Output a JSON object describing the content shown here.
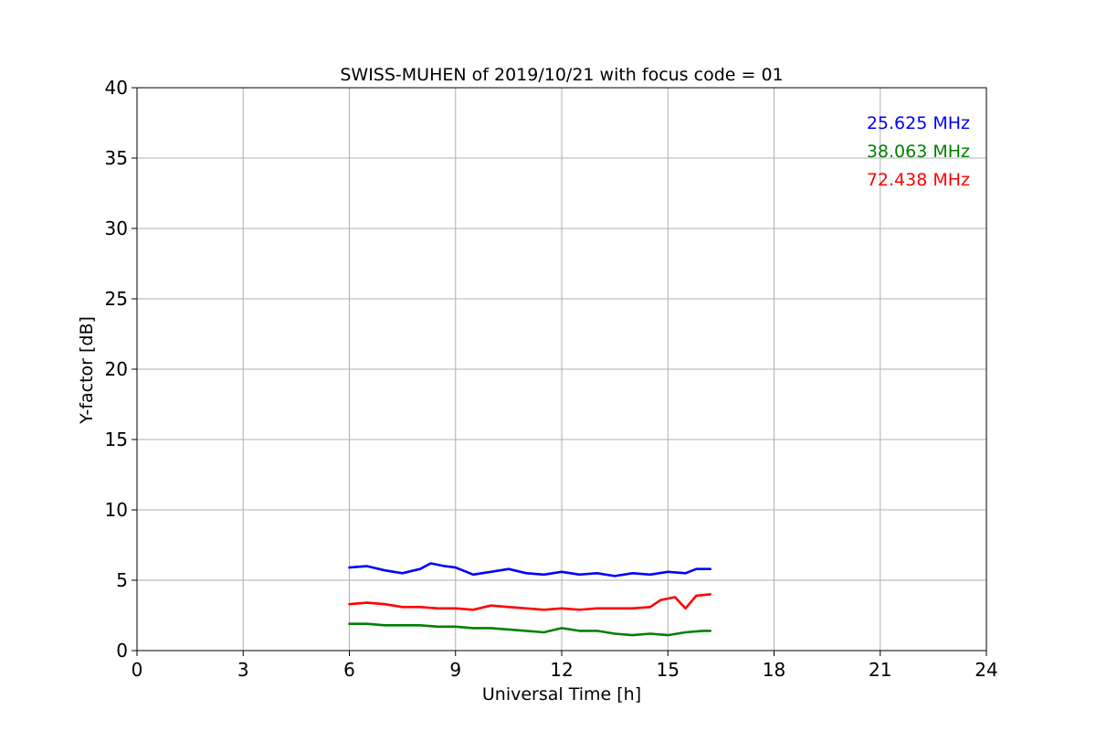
{
  "chart_data": {
    "type": "line",
    "title": "SWISS-MUHEN of 2019/10/21 with focus code = 01",
    "xlabel": "Universal Time [h]",
    "ylabel": "Y-factor [dB]",
    "xlim": [
      0,
      24
    ],
    "ylim": [
      0,
      40
    ],
    "xticks": [
      0,
      3,
      6,
      9,
      12,
      15,
      18,
      21,
      24
    ],
    "yticks": [
      0,
      5,
      10,
      15,
      20,
      25,
      30,
      35,
      40
    ],
    "grid": true,
    "legend_position": "top-right",
    "series": [
      {
        "name": "25.625 MHz",
        "color": "#0000ff",
        "x": [
          6.0,
          6.5,
          7.0,
          7.5,
          8.0,
          8.3,
          8.7,
          9.0,
          9.5,
          10.0,
          10.5,
          11.0,
          11.5,
          12.0,
          12.5,
          13.0,
          13.5,
          14.0,
          14.5,
          15.0,
          15.5,
          15.8,
          16.2
        ],
        "y": [
          5.9,
          6.0,
          5.7,
          5.5,
          5.8,
          6.2,
          6.0,
          5.9,
          5.4,
          5.6,
          5.8,
          5.5,
          5.4,
          5.6,
          5.4,
          5.5,
          5.3,
          5.5,
          5.4,
          5.6,
          5.5,
          5.8,
          5.8
        ]
      },
      {
        "name": "38.063 MHz",
        "color": "#008000",
        "x": [
          6.0,
          6.5,
          7.0,
          7.5,
          8.0,
          8.5,
          9.0,
          9.5,
          10.0,
          10.5,
          11.0,
          11.5,
          12.0,
          12.5,
          13.0,
          13.5,
          14.0,
          14.5,
          15.0,
          15.5,
          16.0,
          16.2
        ],
        "y": [
          1.9,
          1.9,
          1.8,
          1.8,
          1.8,
          1.7,
          1.7,
          1.6,
          1.6,
          1.5,
          1.4,
          1.3,
          1.6,
          1.4,
          1.4,
          1.2,
          1.1,
          1.2,
          1.1,
          1.3,
          1.4,
          1.4
        ]
      },
      {
        "name": "72.438 MHz",
        "color": "#ff0000",
        "x": [
          6.0,
          6.5,
          7.0,
          7.5,
          8.0,
          8.5,
          9.0,
          9.5,
          10.0,
          10.5,
          11.0,
          11.5,
          12.0,
          12.5,
          13.0,
          13.5,
          14.0,
          14.5,
          14.8,
          15.2,
          15.5,
          15.8,
          16.2
        ],
        "y": [
          3.3,
          3.4,
          3.3,
          3.1,
          3.1,
          3.0,
          3.0,
          2.9,
          3.2,
          3.1,
          3.0,
          2.9,
          3.0,
          2.9,
          3.0,
          3.0,
          3.0,
          3.1,
          3.6,
          3.8,
          3.0,
          3.9,
          4.0
        ]
      }
    ]
  }
}
